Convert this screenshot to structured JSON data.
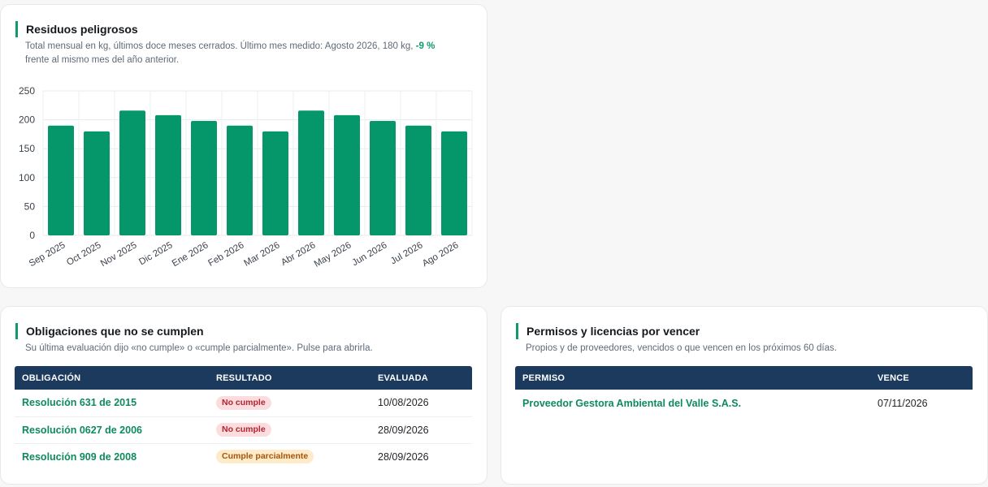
{
  "chart_card": {
    "title": "Residuos peligrosos",
    "subtitle_line1_pre": "Total mensual en kg, últimos doce meses cerrados. Último mes medido: Agosto 2026, 180 kg,",
    "subtitle_change": "-9 %",
    "subtitle_line2": "frente al mismo mes del año anterior."
  },
  "chart_data": {
    "type": "bar",
    "title": "Residuos peligrosos",
    "xlabel": "",
    "ylabel": "",
    "categories": [
      "Sep 2025",
      "Oct 2025",
      "Nov 2025",
      "Dic 2025",
      "Ene 2026",
      "Feb 2026",
      "Mar 2026",
      "Abr 2026",
      "May 2026",
      "Jun 2026",
      "Jul 2026",
      "Ago 2026"
    ],
    "values": [
      190,
      180,
      216,
      208,
      198,
      190,
      180,
      216,
      208,
      198,
      190,
      180
    ],
    "ylim": [
      0,
      250
    ],
    "yticks": [
      0,
      50,
      100,
      150,
      200,
      250
    ],
    "grid": true,
    "bar_color": "#05976a"
  },
  "obligations": {
    "title": "Obligaciones que no se cumplen",
    "subtitle": "Su última evaluación dijo «no cumple» o «cumple parcialmente». Pulse para abrirla.",
    "headers": {
      "obligation": "OBLIGACIÓN",
      "result": "RESULTADO",
      "evaluated": "EVALUADA"
    },
    "rows": [
      {
        "name": "Resolución 631 de 2015",
        "result": "No cumple",
        "date": "10/08/2026"
      },
      {
        "name": "Resolución 0627 de 2006",
        "result": "No cumple",
        "date": "28/09/2026"
      },
      {
        "name": "Resolución 909 de 2008",
        "result": "Cumple parcialmente",
        "date": "28/09/2026"
      }
    ]
  },
  "permits": {
    "title": "Permisos y licencias por vencer",
    "subtitle": "Propios y de proveedores, vencidos o que vencen en los próximos 60 días.",
    "headers": {
      "permit": "PERMISO",
      "expires": "VENCE"
    },
    "rows": [
      {
        "name": "Proveedor Gestora Ambiental del Valle S.A.S.",
        "date": "07/11/2026"
      }
    ]
  },
  "colors": {
    "accent": "#0e9a6a",
    "table_header": "#1c3a5e",
    "badge_fail_bg": "#fbdde0",
    "badge_partial_bg": "#fdebc9"
  }
}
